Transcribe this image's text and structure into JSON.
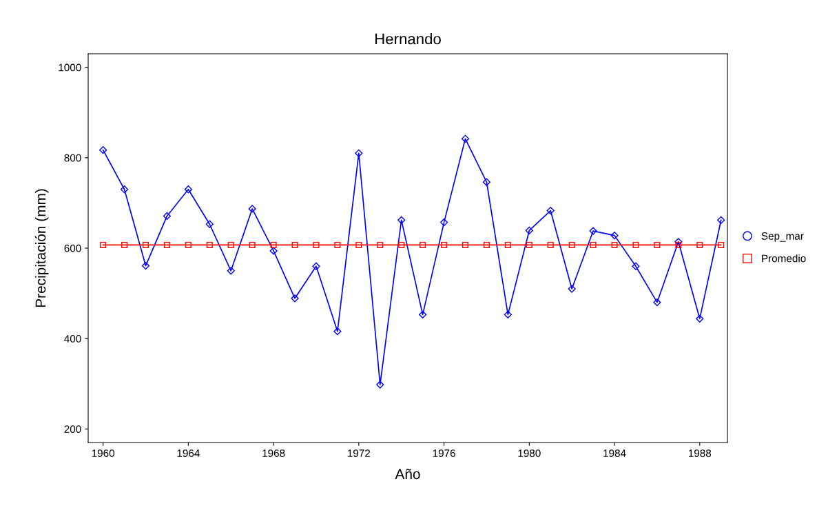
{
  "chart_data": {
    "type": "line",
    "title": "Hernando",
    "xlabel": "Año",
    "ylabel": "Precipitación (mm)",
    "x": [
      1960,
      1961,
      1962,
      1963,
      1964,
      1965,
      1966,
      1967,
      1968,
      1969,
      1970,
      1971,
      1972,
      1973,
      1974,
      1975,
      1976,
      1977,
      1978,
      1979,
      1980,
      1981,
      1982,
      1983,
      1984,
      1985,
      1986,
      1987,
      1988,
      1989
    ],
    "series": [
      {
        "name": "Sep_mar",
        "color": "#0000ff",
        "marker": "diamond",
        "values": [
          817,
          730,
          561,
          671,
          730,
          653,
          550,
          687,
          594,
          489,
          560,
          416,
          810,
          298,
          662,
          453,
          657,
          842,
          746,
          453,
          639,
          683,
          510,
          638,
          628,
          560,
          480,
          614,
          444,
          662
        ]
      },
      {
        "name": "Promedio",
        "color": "#ff0000",
        "marker": "square",
        "values": [
          607,
          607,
          607,
          607,
          607,
          607,
          607,
          607,
          607,
          607,
          607,
          607,
          607,
          607,
          607,
          607,
          607,
          607,
          607,
          607,
          607,
          607,
          607,
          607,
          607,
          607,
          607,
          607,
          607,
          607
        ]
      }
    ],
    "xlim": [
      1959.3,
      1989.3
    ],
    "xticks": [
      1960,
      1964,
      1968,
      1972,
      1976,
      1980,
      1984,
      1988
    ],
    "ylim": [
      170,
      1030
    ],
    "yticks": [
      200,
      400,
      600,
      800,
      1000
    ],
    "grid": false,
    "legend": "right",
    "line_style": "solid"
  }
}
